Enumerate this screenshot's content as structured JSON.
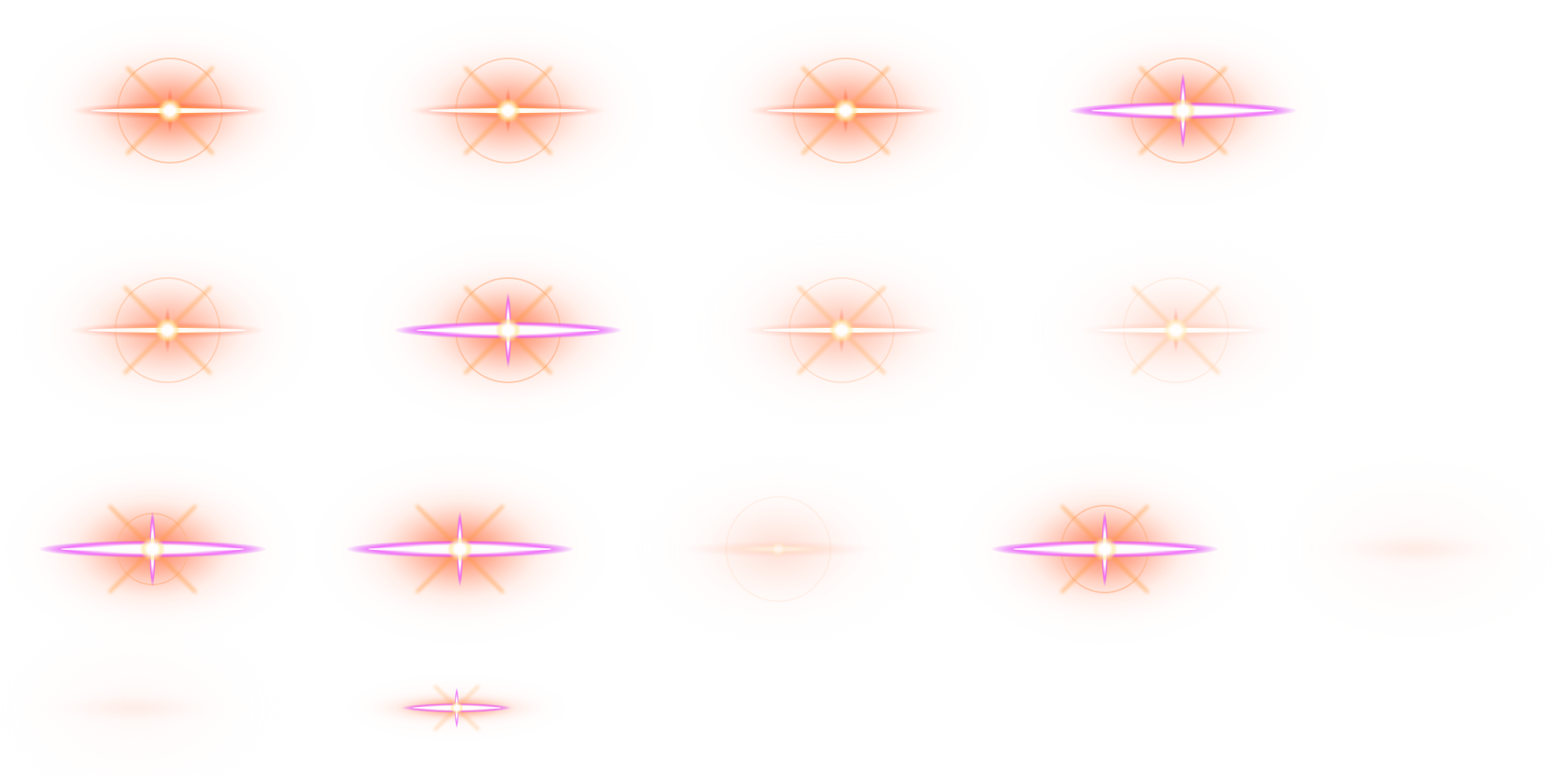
{
  "colors": {
    "background": "#ffffff",
    "glow_orange": "#ff7a3c",
    "glow_red": "#ff3a2a",
    "glow_yellow": "#ffd060",
    "streak_magenta": "#e040ff",
    "core_white": "#ffffff",
    "ring_peach": "#ffb48a"
  },
  "flares": [
    {
      "id": "flare-r1-c1",
      "row": 1,
      "col": 1,
      "style": "ring-orange",
      "intensity": 1.0
    },
    {
      "id": "flare-r1-c2",
      "row": 1,
      "col": 2,
      "style": "ring-orange",
      "intensity": 0.85
    },
    {
      "id": "flare-r1-c3",
      "row": 1,
      "col": 3,
      "style": "ring-orange",
      "intensity": 0.85
    },
    {
      "id": "flare-r1-c4",
      "row": 1,
      "col": 4,
      "style": "ring-magenta",
      "intensity": 1.0
    },
    {
      "id": "flare-r2-c1",
      "row": 2,
      "col": 1,
      "style": "ring-orange",
      "intensity": 0.7
    },
    {
      "id": "flare-r2-c2",
      "row": 2,
      "col": 2,
      "style": "ring-magenta",
      "intensity": 1.0
    },
    {
      "id": "flare-r2-c3",
      "row": 2,
      "col": 3,
      "style": "ring-orange",
      "intensity": 0.55
    },
    {
      "id": "flare-r2-c4",
      "row": 2,
      "col": 4,
      "style": "ring-orange",
      "intensity": 0.35
    },
    {
      "id": "flare-r3-c1",
      "row": 3,
      "col": 1,
      "style": "star-magenta",
      "intensity": 1.0
    },
    {
      "id": "flare-r3-c2",
      "row": 3,
      "col": 2,
      "style": "star-magenta",
      "intensity": 1.0
    },
    {
      "id": "flare-r3-c3",
      "row": 3,
      "col": 3,
      "style": "faint",
      "intensity": 0.3
    },
    {
      "id": "flare-r3-c4",
      "row": 3,
      "col": 4,
      "style": "ring-magenta",
      "intensity": 1.0
    },
    {
      "id": "flare-r3-c5",
      "row": 3,
      "col": 5,
      "style": "faint-streak",
      "intensity": 0.2
    },
    {
      "id": "flare-r4-c1",
      "row": 4,
      "col": 1,
      "style": "faint-streak",
      "intensity": 0.15
    },
    {
      "id": "flare-r4-c2",
      "row": 4,
      "col": 2,
      "style": "small-star",
      "intensity": 0.9
    }
  ]
}
